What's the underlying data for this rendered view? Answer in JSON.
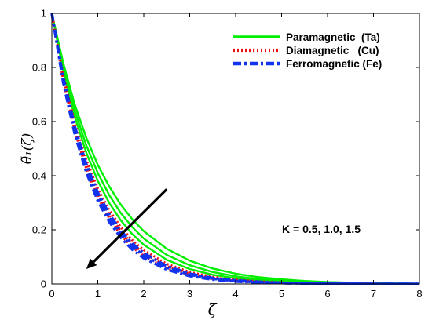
{
  "chart_data": {
    "type": "line",
    "xlabel": "ζ",
    "ylabel": "θ̃₁(ζ)",
    "xlim": [
      0,
      8
    ],
    "ylim": [
      0,
      1
    ],
    "xticks": [
      "0",
      "1",
      "2",
      "3",
      "4",
      "5",
      "6",
      "7",
      "8"
    ],
    "yticks": [
      "0",
      "0.2",
      "0.4",
      "0.6",
      "0.8",
      "1"
    ],
    "grid": false,
    "legend_position": "top-right",
    "annotation": "K = 0.5, 1.0, 1.5",
    "arrow": {
      "from": [
        2.5,
        0.35
      ],
      "to": [
        0.75,
        0.055
      ]
    },
    "x": [
      0,
      0.25,
      0.5,
      0.75,
      1,
      1.25,
      1.5,
      1.75,
      2,
      2.5,
      3,
      3.5,
      4,
      4.5,
      5,
      5.5,
      6,
      6.5,
      7,
      7.5,
      8
    ],
    "series": [
      {
        "name": "Paramagnetic  (Ta)",
        "style": "solid",
        "color": "#00ee00",
        "K": 0.5,
        "values": [
          1,
          0.815,
          0.662,
          0.54,
          0.44,
          0.36,
          0.293,
          0.239,
          0.195,
          0.13,
          0.086,
          0.057,
          0.038,
          0.025,
          0.017,
          0.011,
          0.007,
          0.005,
          0.003,
          0.002,
          0.001
        ]
      },
      {
        "name": "",
        "style": "solid",
        "color": "#00ee00",
        "K": 1.0,
        "values": [
          1,
          0.8,
          0.64,
          0.512,
          0.41,
          0.328,
          0.262,
          0.21,
          0.168,
          0.107,
          0.069,
          0.044,
          0.028,
          0.018,
          0.012,
          0.007,
          0.005,
          0.003,
          0.002,
          0.001,
          0.001
        ]
      },
      {
        "name": "",
        "style": "solid",
        "color": "#00ee00",
        "K": 1.5,
        "values": [
          1,
          0.785,
          0.617,
          0.485,
          0.381,
          0.299,
          0.235,
          0.184,
          0.145,
          0.089,
          0.055,
          0.034,
          0.021,
          0.013,
          0.008,
          0.005,
          0.003,
          0.002,
          0.001,
          0.001,
          0.0
        ]
      },
      {
        "name": "Diamagnetic   (Cu)",
        "style": "dotted",
        "color": "#ee1111",
        "K": 0.5,
        "values": [
          1,
          0.77,
          0.595,
          0.458,
          0.353,
          0.272,
          0.21,
          0.162,
          0.125,
          0.074,
          0.044,
          0.026,
          0.016,
          0.009,
          0.006,
          0.003,
          0.002,
          0.001,
          0.001,
          0.0,
          0.0
        ]
      },
      {
        "name": "",
        "style": "dotted",
        "color": "#ee1111",
        "K": 1.0,
        "values": [
          1,
          0.76,
          0.58,
          0.441,
          0.336,
          0.256,
          0.195,
          0.148,
          0.113,
          0.065,
          0.038,
          0.022,
          0.013,
          0.007,
          0.004,
          0.002,
          0.001,
          0.001,
          0.0,
          0.0,
          0.0
        ]
      },
      {
        "name": "",
        "style": "dotted",
        "color": "#ee1111",
        "K": 1.5,
        "values": [
          1,
          0.75,
          0.565,
          0.425,
          0.32,
          0.241,
          0.181,
          0.136,
          0.103,
          0.058,
          0.033,
          0.019,
          0.011,
          0.006,
          0.003,
          0.002,
          0.001,
          0.001,
          0.0,
          0.0,
          0.0
        ]
      },
      {
        "name": "Ferromagnetic (Fe)",
        "style": "dashdot",
        "color": "#1133ee",
        "K": 0.5,
        "values": [
          1,
          0.762,
          0.582,
          0.443,
          0.338,
          0.258,
          0.197,
          0.15,
          0.114,
          0.066,
          0.038,
          0.022,
          0.013,
          0.008,
          0.004,
          0.003,
          0.001,
          0.001,
          0.0,
          0.0,
          0.0
        ]
      },
      {
        "name": "",
        "style": "dashdot",
        "color": "#1133ee",
        "K": 1.0,
        "values": [
          1,
          0.752,
          0.568,
          0.428,
          0.323,
          0.244,
          0.184,
          0.139,
          0.105,
          0.06,
          0.034,
          0.019,
          0.011,
          0.006,
          0.004,
          0.002,
          0.001,
          0.001,
          0.0,
          0.0,
          0.0
        ]
      },
      {
        "name": "",
        "style": "dashdot",
        "color": "#1133ee",
        "K": 1.5,
        "values": [
          1,
          0.742,
          0.553,
          0.412,
          0.307,
          0.229,
          0.171,
          0.127,
          0.095,
          0.053,
          0.029,
          0.016,
          0.009,
          0.005,
          0.003,
          0.002,
          0.001,
          0.0,
          0.0,
          0.0,
          0.0
        ]
      }
    ]
  }
}
